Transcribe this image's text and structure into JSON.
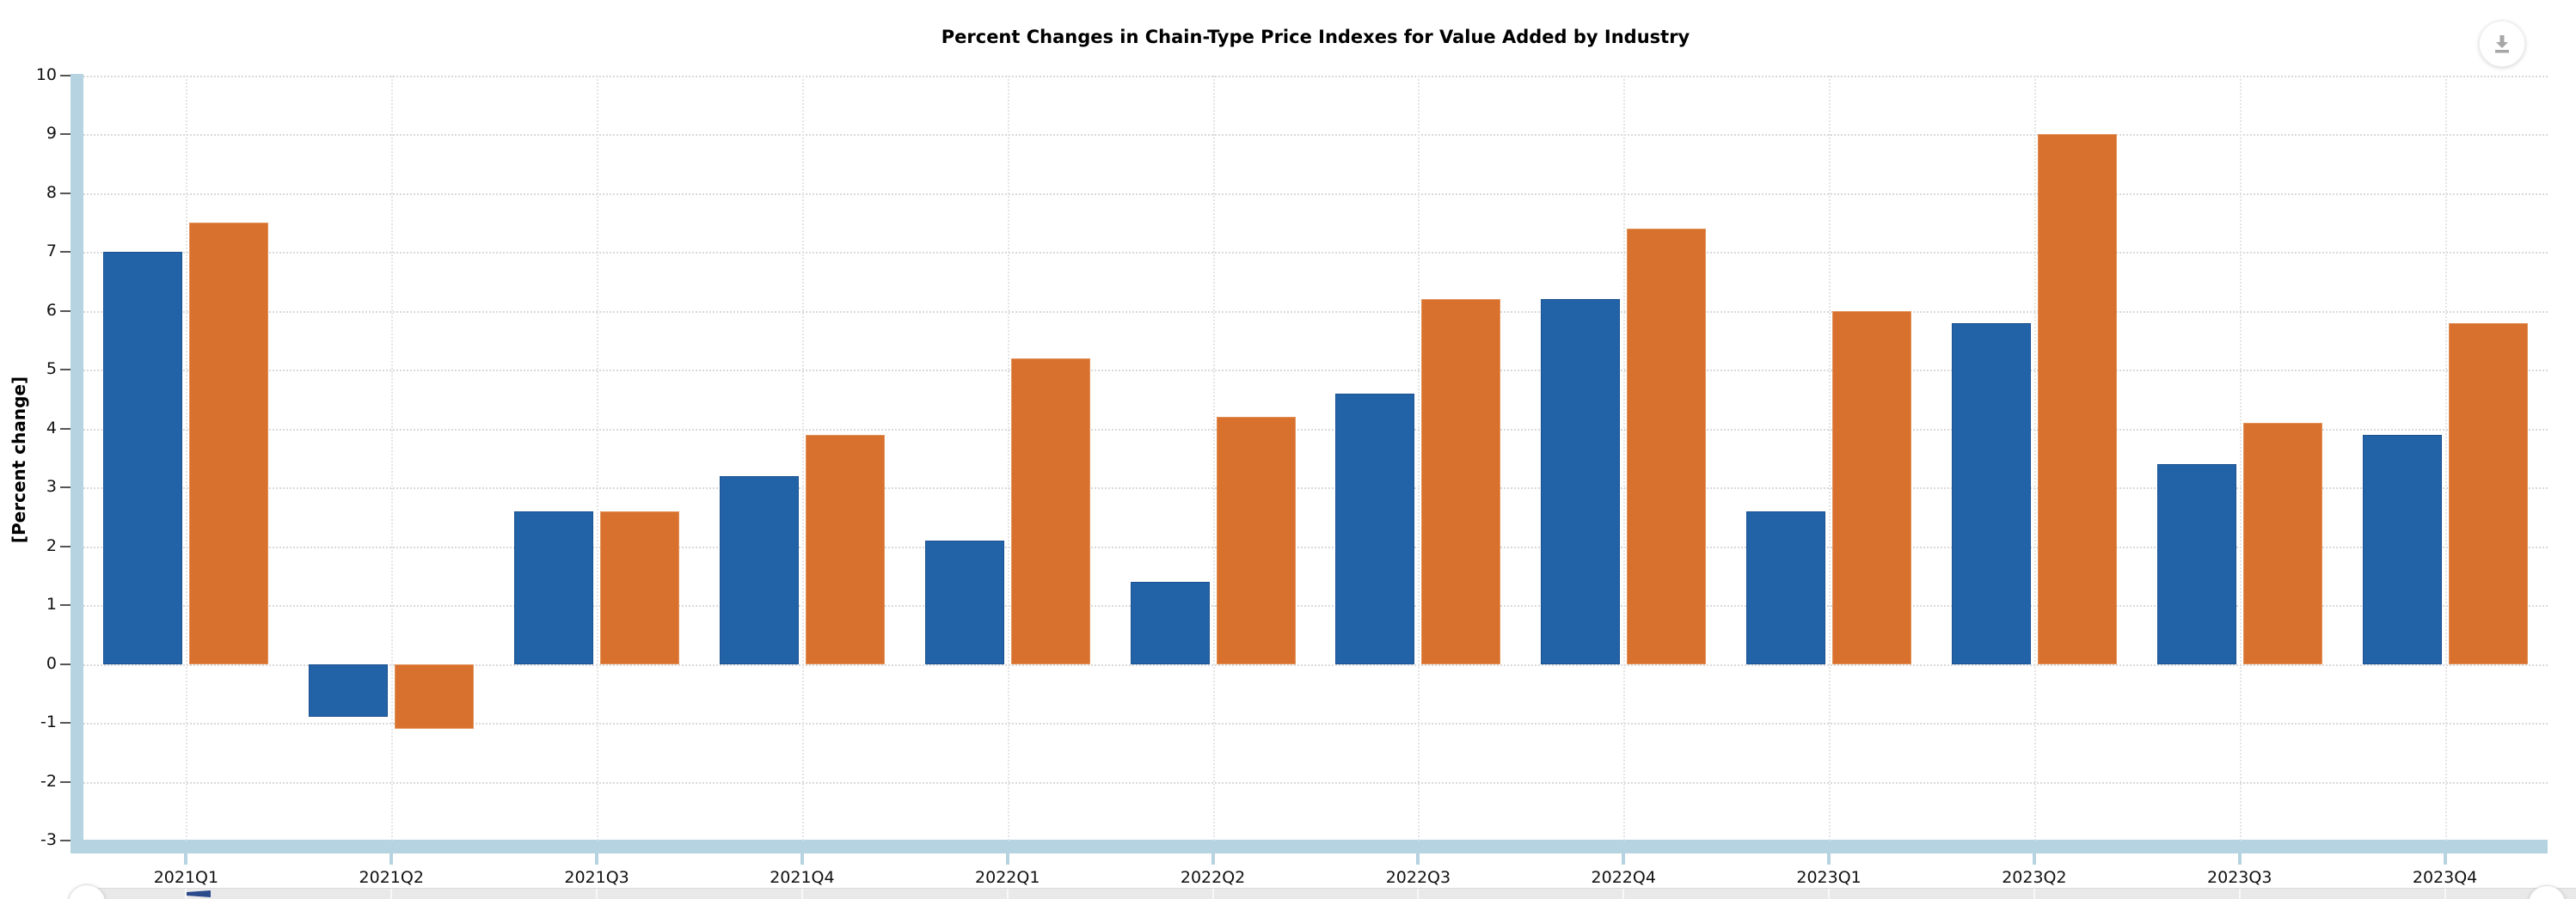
{
  "title": "Percent Changes in Chain-Type Price Indexes for Value Added by Industry",
  "toolbar": {
    "download_label": "download-chart"
  },
  "chart_data": {
    "type": "bar",
    "title": "Percent Changes in Chain-Type Price Indexes for Value Added by Industry",
    "xlabel": "",
    "ylabel": "[Percent change]",
    "ylim": [
      -3,
      10
    ],
    "ytick_step": 1,
    "grid": true,
    "legend_position": "none",
    "categories": [
      "2021Q1",
      "2021Q2",
      "2021Q3",
      "2021Q4",
      "2022Q1",
      "2022Q2",
      "2022Q3",
      "2022Q4",
      "2023Q1",
      "2023Q2",
      "2023Q3",
      "2023Q4"
    ],
    "series": [
      {
        "id": "series-1-blue",
        "color": "#2263a7",
        "values": [
          7.0,
          -0.9,
          2.6,
          3.2,
          2.1,
          1.4,
          4.6,
          6.2,
          2.6,
          5.8,
          3.4,
          3.9
        ]
      },
      {
        "id": "series-2-orange",
        "color": "#d8702e",
        "values": [
          7.5,
          -1.1,
          2.6,
          3.9,
          5.2,
          4.2,
          6.2,
          7.4,
          6.0,
          9.0,
          4.1,
          5.8
        ]
      }
    ]
  },
  "colors": {
    "bar_blue": "#2263a7",
    "bar_orange": "#d8702e",
    "axis_band": "#b5d3e0",
    "gridline": "#d9d9d9",
    "navigator_track": "#e9e9e9",
    "navigator_line": "#2a4a8c",
    "download_icon": "#a6a6a6"
  }
}
